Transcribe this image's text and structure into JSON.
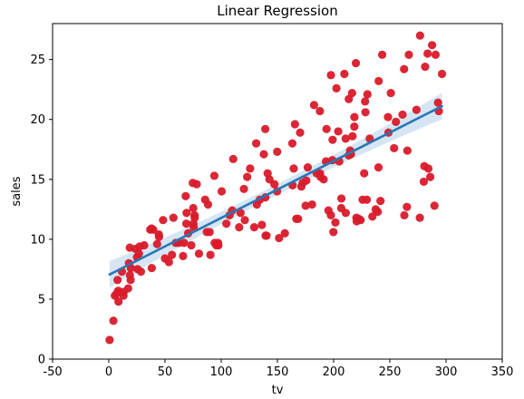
{
  "chart_data": {
    "type": "scatter",
    "title": "Linear Regression",
    "xlabel": "tv",
    "ylabel": "sales",
    "xlim": [
      -50,
      350
    ],
    "ylim": [
      0,
      28
    ],
    "xticks": [
      -50,
      0,
      50,
      100,
      150,
      200,
      250,
      300,
      350
    ],
    "yticks": [
      0,
      5,
      10,
      15,
      20,
      25
    ],
    "grid": false,
    "colors": {
      "points": "#d91a2a",
      "line": "#2878b5",
      "band": "#cfe0f1"
    },
    "points": [
      [
        0.7,
        1.6
      ],
      [
        4.1,
        3.2
      ],
      [
        5.4,
        5.3
      ],
      [
        7.3,
        5.5
      ],
      [
        7.8,
        6.6
      ],
      [
        8.4,
        5.7
      ],
      [
        8.6,
        4.8
      ],
      [
        11.7,
        7.3
      ],
      [
        13.1,
        5.3
      ],
      [
        13.2,
        5.6
      ],
      [
        17.2,
        5.9
      ],
      [
        17.9,
        8.0
      ],
      [
        18.7,
        9.3
      ],
      [
        18.8,
        7.0
      ],
      [
        19.4,
        6.6
      ],
      [
        19.6,
        7.6
      ],
      [
        23.8,
        9.2
      ],
      [
        25.1,
        8.5
      ],
      [
        25.6,
        7.5
      ],
      [
        26.8,
        8.8
      ],
      [
        27.5,
        9.4
      ],
      [
        28.6,
        7.3
      ],
      [
        31.5,
        9.5
      ],
      [
        36.9,
        10.8
      ],
      [
        38.0,
        10.9
      ],
      [
        38.2,
        7.6
      ],
      [
        39.5,
        10.8
      ],
      [
        43.0,
        9.6
      ],
      [
        44.5,
        10.4
      ],
      [
        44.7,
        10.2
      ],
      [
        48.3,
        11.6
      ],
      [
        50.0,
        8.4
      ],
      [
        53.5,
        8.1
      ],
      [
        56.2,
        8.7
      ],
      [
        57.5,
        11.8
      ],
      [
        59.6,
        9.7
      ],
      [
        62.3,
        9.7
      ],
      [
        66.1,
        8.6
      ],
      [
        66.9,
        9.7
      ],
      [
        68.4,
        13.6
      ],
      [
        69.0,
        11.3
      ],
      [
        69.2,
        12.2
      ],
      [
        70.6,
        10.5
      ],
      [
        73.4,
        9.5
      ],
      [
        74.7,
        14.7
      ],
      [
        75.1,
        12.6
      ],
      [
        75.3,
        11.3
      ],
      [
        75.5,
        11.0
      ],
      [
        76.3,
        12.0
      ],
      [
        76.4,
        11.8
      ],
      [
        78.2,
        14.6
      ],
      [
        80.2,
        8.8
      ],
      [
        85.7,
        13.3
      ],
      [
        87.2,
        10.6
      ],
      [
        88.3,
        12.9
      ],
      [
        89.7,
        10.6
      ],
      [
        90.4,
        8.7
      ],
      [
        93.9,
        15.3
      ],
      [
        94.2,
        9.7
      ],
      [
        95.7,
        9.5
      ],
      [
        96.2,
        9.6
      ],
      [
        97.2,
        9.7
      ],
      [
        97.5,
        9.5
      ],
      [
        100.4,
        14.0
      ],
      [
        104.6,
        11.3
      ],
      [
        107.4,
        12.0
      ],
      [
        109.8,
        12.4
      ],
      [
        110.7,
        16.7
      ],
      [
        116.0,
        11.0
      ],
      [
        117.2,
        12.2
      ],
      [
        120.2,
        14.2
      ],
      [
        121.0,
        11.6
      ],
      [
        123.1,
        15.2
      ],
      [
        125.7,
        15.9
      ],
      [
        129.4,
        11.0
      ],
      [
        131.1,
        18.0
      ],
      [
        131.7,
        12.9
      ],
      [
        134.3,
        13.3
      ],
      [
        136.2,
        11.2
      ],
      [
        137.9,
        17.1
      ],
      [
        139.2,
        19.2
      ],
      [
        139.3,
        13.5
      ],
      [
        139.5,
        10.3
      ],
      [
        140.3,
        10.3
      ],
      [
        141.3,
        15.5
      ],
      [
        142.9,
        15.0
      ],
      [
        147.3,
        14.6
      ],
      [
        149.7,
        14.0
      ],
      [
        149.8,
        17.3
      ],
      [
        151.5,
        10.1
      ],
      [
        156.6,
        10.5
      ],
      [
        163.3,
        18.0
      ],
      [
        163.5,
        14.5
      ],
      [
        164.5,
        15.9
      ],
      [
        165.6,
        19.6
      ],
      [
        166.8,
        11.7
      ],
      [
        168.4,
        11.7
      ],
      [
        170.2,
        18.9
      ],
      [
        171.3,
        14.4
      ],
      [
        172.5,
        14.7
      ],
      [
        175.1,
        12.8
      ],
      [
        175.7,
        14.9
      ],
      [
        177.0,
        16.0
      ],
      [
        180.8,
        12.9
      ],
      [
        182.6,
        21.2
      ],
      [
        184.9,
        15.5
      ],
      [
        187.8,
        20.7
      ],
      [
        187.9,
        15.5
      ],
      [
        188.4,
        15.2
      ],
      [
        191.1,
        15.0
      ],
      [
        193.2,
        16.5
      ],
      [
        193.7,
        19.2
      ],
      [
        195.4,
        12.4
      ],
      [
        197.6,
        12.0
      ],
      [
        197.6,
        23.7
      ],
      [
        198.9,
        16.6
      ],
      [
        199.1,
        18.3
      ],
      [
        199.8,
        10.6
      ],
      [
        201.6,
        11.4
      ],
      [
        202.5,
        22.6
      ],
      [
        204.1,
        19.0
      ],
      [
        205.0,
        16.5
      ],
      [
        206.8,
        12.6
      ],
      [
        206.9,
        13.4
      ],
      [
        209.6,
        23.8
      ],
      [
        210.7,
        18.4
      ],
      [
        210.8,
        12.2
      ],
      [
        213.4,
        17.0
      ],
      [
        213.5,
        21.7
      ],
      [
        214.7,
        17.4
      ],
      [
        215.4,
        17.1
      ],
      [
        216.4,
        22.2
      ],
      [
        216.8,
        18.6
      ],
      [
        218.4,
        19.4
      ],
      [
        218.5,
        20.2
      ],
      [
        219.8,
        24.7
      ],
      [
        220.3,
        11.8
      ],
      [
        220.5,
        11.5
      ],
      [
        222.4,
        11.7
      ],
      [
        224.0,
        11.6
      ],
      [
        225.8,
        13.3
      ],
      [
        227.2,
        15.5
      ],
      [
        228.0,
        21.5
      ],
      [
        228.3,
        20.6
      ],
      [
        229.5,
        13.3
      ],
      [
        230.1,
        22.1
      ],
      [
        232.1,
        18.4
      ],
      [
        234.5,
        11.9
      ],
      [
        237.4,
        12.5
      ],
      [
        239.3,
        12.3
      ],
      [
        239.9,
        16.0
      ],
      [
        240.1,
        23.2
      ],
      [
        241.7,
        13.2
      ],
      [
        243.2,
        25.4
      ],
      [
        248.4,
        20.2
      ],
      [
        248.8,
        18.9
      ],
      [
        250.9,
        22.2
      ],
      [
        253.8,
        17.6
      ],
      [
        255.4,
        19.8
      ],
      [
        261.3,
        20.4
      ],
      [
        262.7,
        24.2
      ],
      [
        262.9,
        12.0
      ],
      [
        265.2,
        12.7
      ],
      [
        265.6,
        17.4
      ],
      [
        266.9,
        25.4
      ],
      [
        273.7,
        20.8
      ],
      [
        276.7,
        11.8
      ],
      [
        276.9,
        27.0
      ],
      [
        280.2,
        14.8
      ],
      [
        280.7,
        16.1
      ],
      [
        281.4,
        24.4
      ],
      [
        283.6,
        25.5
      ],
      [
        284.3,
        15.9
      ],
      [
        286.0,
        15.2
      ],
      [
        287.6,
        26.2
      ],
      [
        289.7,
        12.8
      ],
      [
        290.7,
        25.4
      ],
      [
        292.9,
        21.4
      ],
      [
        293.6,
        20.7
      ],
      [
        296.4,
        23.8
      ]
    ],
    "regression": {
      "intercept": 7.03,
      "slope": 0.0475,
      "x_range": [
        0.7,
        296.4
      ],
      "band_width_at_ends": 1.1,
      "band_width_at_center": 0.45
    }
  }
}
